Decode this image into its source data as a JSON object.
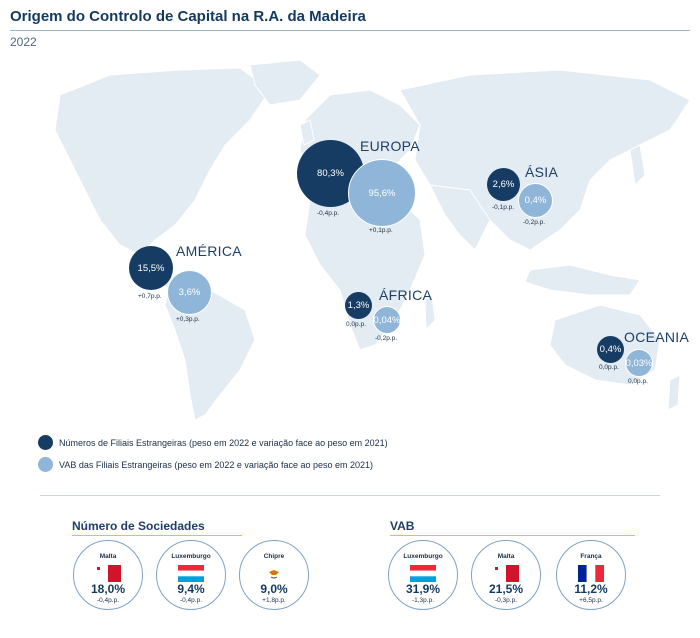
{
  "header": {
    "title": "Origem do Controlo de Capital na R.A. da Madeira",
    "year": "2022"
  },
  "chart_data": {
    "type": "bubble-map",
    "title": "Origem do Controlo de Capital na R.A. da Madeira",
    "subtitle": "2022",
    "series": [
      {
        "name": "Números de Filiais Estrangeiras (peso em 2022 e variação face ao peso em 2021)",
        "color": "#163c64"
      },
      {
        "name": "VAB das Filiais Estrangeiras (peso em 2022 e variação face ao peso em 2021)",
        "color": "#8fb6d9"
      }
    ],
    "regions": [
      {
        "name": "EUROPA",
        "filiais": {
          "value": 80.3,
          "label": "80,3%",
          "change": "-0,4p.p."
        },
        "vab": {
          "value": 95.6,
          "label": "95,6%",
          "change": "+0,1p.p."
        }
      },
      {
        "name": "AMÉRICA",
        "filiais": {
          "value": 15.5,
          "label": "15,5%",
          "change": "+0,7p.p."
        },
        "vab": {
          "value": 3.6,
          "label": "3,6%",
          "change": "+0,3p.p."
        }
      },
      {
        "name": "ÁSIA",
        "filiais": {
          "value": 2.6,
          "label": "2,6%",
          "change": "-0,1p.p."
        },
        "vab": {
          "value": 0.4,
          "label": "0,4%",
          "change": "-0,2p.p."
        }
      },
      {
        "name": "ÁFRICA",
        "filiais": {
          "value": 1.3,
          "label": "1,3%",
          "change": "0,0p.p."
        },
        "vab": {
          "value": 0.04,
          "label": "0,04%",
          "change": "-0,2p.p."
        }
      },
      {
        "name": "OCEANIA",
        "filiais": {
          "value": 0.4,
          "label": "0,4%",
          "change": "0,0p.p."
        },
        "vab": {
          "value": 0.03,
          "label": "0,03%",
          "change": "0,0p.p."
        }
      }
    ]
  },
  "legend": {
    "filiais": "Números de Filiais Estrangeiras (peso em 2022 e variação face ao peso em 2021)",
    "vab": "VAB das Filiais Estrangeiras (peso em 2022 e variação face ao peso em 2021)"
  },
  "sociedades": {
    "title": "Número de Sociedades",
    "items": [
      {
        "country": "Malta",
        "value": "18,0%",
        "delta": "-0,4p.p.",
        "flag": "malta"
      },
      {
        "country": "Luxemburgo",
        "value": "9,4%",
        "delta": "-0,4p.p.",
        "flag": "luxembourg"
      },
      {
        "country": "Chipre",
        "value": "9,0%",
        "delta": "+1,8p.p.",
        "flag": "cyprus"
      }
    ]
  },
  "vab": {
    "title": "VAB",
    "items": [
      {
        "country": "Luxemburgo",
        "value": "31,9%",
        "delta": "-1,3p.p.",
        "flag": "luxembourg"
      },
      {
        "country": "Malta",
        "value": "21,5%",
        "delta": "-0,3p.p.",
        "flag": "malta"
      },
      {
        "country": "França",
        "value": "11,2%",
        "delta": "+6,5p.p.",
        "flag": "france"
      }
    ]
  },
  "colors": {
    "dark": "#163c64",
    "light": "#8fb6d9",
    "map": "#e3ebf3",
    "accent": "#f1c40f"
  }
}
